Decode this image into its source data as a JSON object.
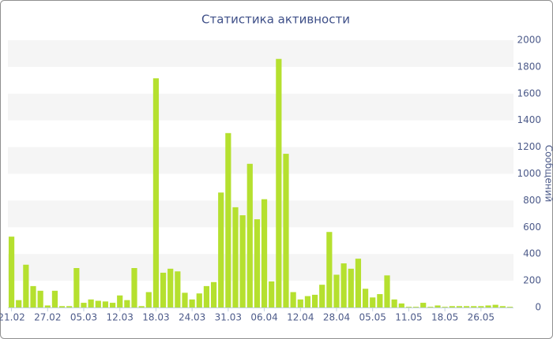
{
  "chart_data": {
    "type": "bar",
    "title": "Статистика активности",
    "y_axis_label": "Сообщений",
    "categories": [
      "21.02",
      null,
      null,
      null,
      null,
      "27.02",
      null,
      null,
      null,
      null,
      "05.03",
      null,
      null,
      null,
      null,
      "12.03",
      null,
      null,
      null,
      null,
      "18.03",
      null,
      null,
      null,
      null,
      "24.03",
      null,
      null,
      null,
      null,
      "31.03",
      null,
      null,
      null,
      null,
      "06.04",
      null,
      null,
      null,
      null,
      "12.04",
      null,
      null,
      null,
      null,
      "28.04",
      null,
      null,
      null,
      null,
      "05.05",
      null,
      null,
      null,
      null,
      "11.05",
      null,
      null,
      null,
      null,
      "18.05",
      null,
      null,
      null,
      null,
      "26.05",
      null,
      null,
      null,
      null
    ],
    "values": [
      530,
      55,
      320,
      160,
      125,
      15,
      125,
      10,
      10,
      295,
      35,
      60,
      50,
      45,
      35,
      90,
      55,
      295,
      10,
      115,
      1715,
      260,
      290,
      270,
      110,
      60,
      105,
      160,
      190,
      860,
      1305,
      750,
      690,
      1075,
      660,
      810,
      195,
      1860,
      1150,
      115,
      60,
      85,
      95,
      170,
      565,
      245,
      330,
      290,
      365,
      140,
      75,
      100,
      240,
      60,
      30,
      5,
      5,
      35,
      5,
      15,
      5,
      10,
      10,
      10,
      10,
      10,
      15,
      20,
      10,
      5
    ],
    "color": "#b5e02f",
    "ylim": [
      0,
      2000
    ],
    "yticks": [
      0,
      200,
      400,
      600,
      800,
      1000,
      1200,
      1400,
      1600,
      1800,
      2000
    ],
    "grid": true
  }
}
